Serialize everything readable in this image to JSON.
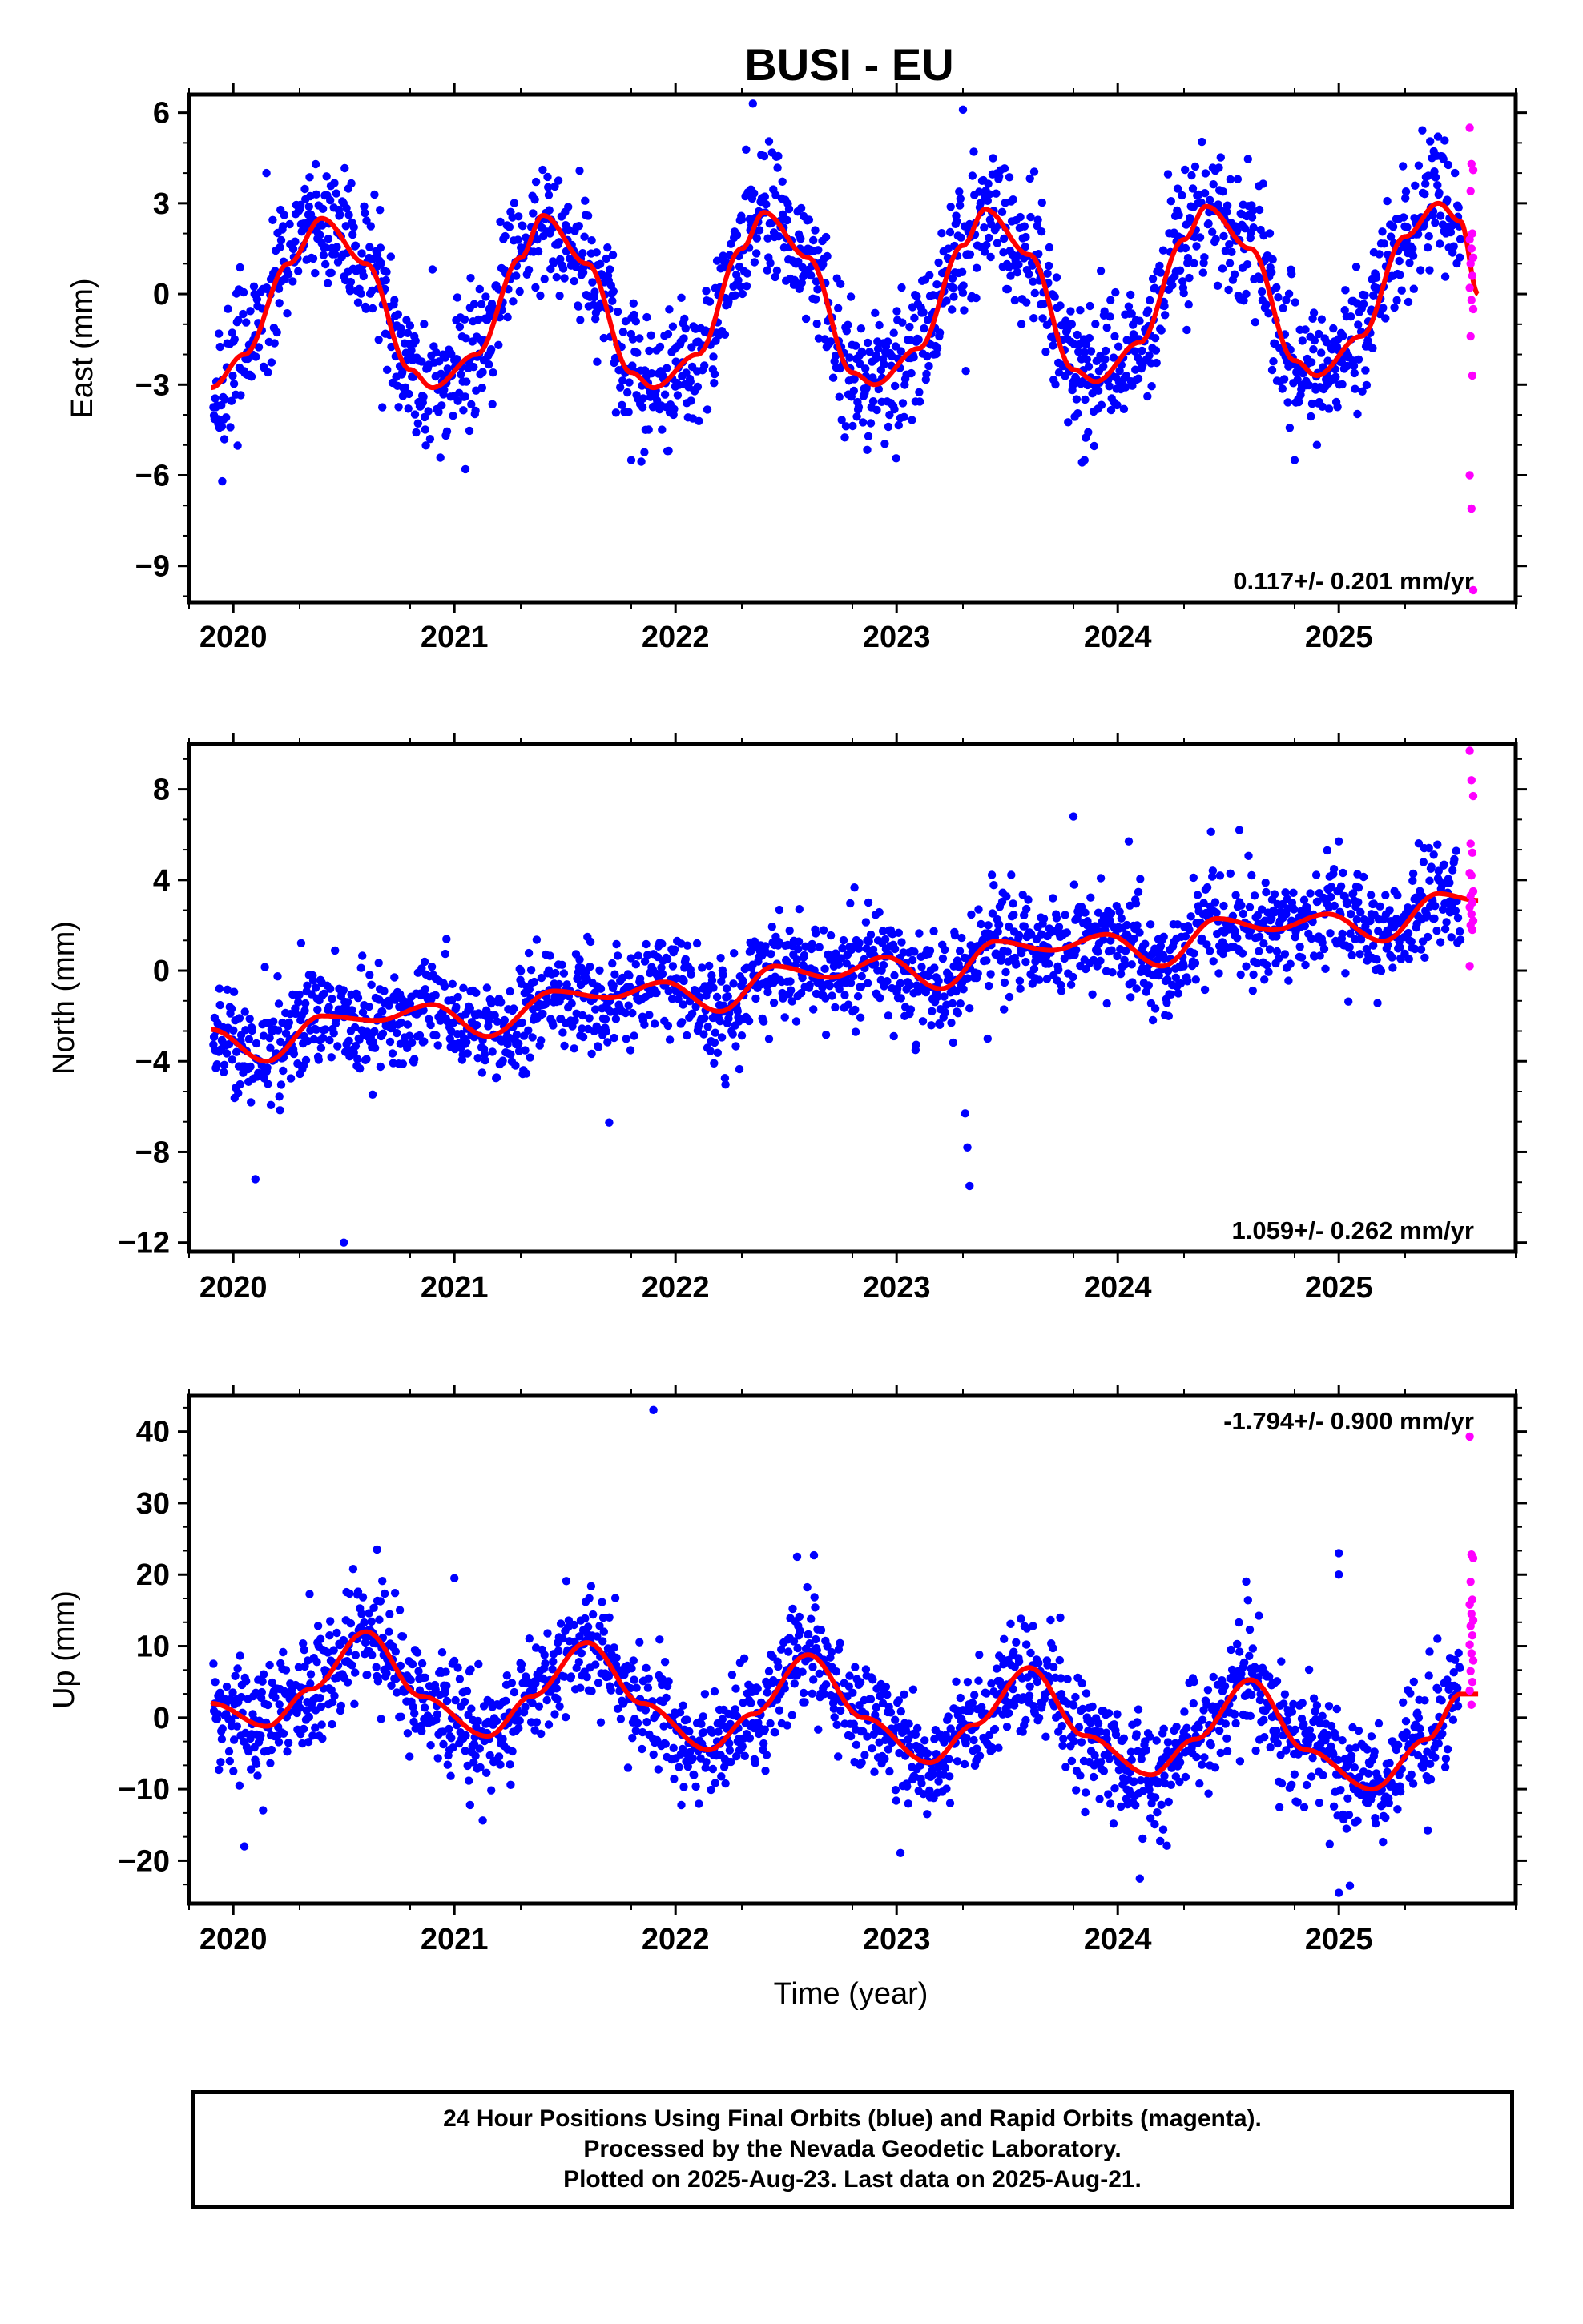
{
  "title": "BUSI - EU",
  "xlabel": "Time (year)",
  "colors": {
    "final_orbits": "#0000ff",
    "rapid_orbits": "#ff00ff",
    "model_fit": "#ff0000",
    "frame": "#000000"
  },
  "caption": {
    "line1": "24 Hour Positions Using Final Orbits (blue) and Rapid Orbits (magenta).",
    "line2": "Processed by the Nevada Geodetic Laboratory.",
    "line3": "Plotted on 2025-Aug-23. Last data on 2025-Aug-21."
  },
  "chart_data": [
    {
      "type": "scatter",
      "component": "east",
      "ylabel": "East (mm)",
      "xlim": [
        2019.8,
        2025.8
      ],
      "ylim": [
        -10.2,
        6.6
      ],
      "xticks": [
        2020,
        2021,
        2022,
        2023,
        2024,
        2025
      ],
      "yticks": [
        6,
        3,
        0,
        -3,
        -6,
        -9
      ],
      "rate_label": "0.117+/- 0.201 mm/yr",
      "rate_label_position": "bottom-right",
      "time_span": [
        2019.91,
        2025.55
      ],
      "final_orbit_scatter_mm": 1.1,
      "series": [
        {
          "name": "Final Orbits",
          "color": "#0000ff",
          "curve_points": [
            [
              2019.9,
              -3.2
            ],
            [
              2020.05,
              -2.0
            ],
            [
              2020.25,
              1.0
            ],
            [
              2020.4,
              2.6
            ],
            [
              2020.6,
              1.0
            ],
            [
              2020.8,
              -2.5
            ],
            [
              2020.9,
              -3.2
            ],
            [
              2021.1,
              -2.0
            ],
            [
              2021.3,
              1.2
            ],
            [
              2021.4,
              2.6
            ],
            [
              2021.6,
              1.0
            ],
            [
              2021.8,
              -2.6
            ],
            [
              2021.9,
              -3.1
            ],
            [
              2022.1,
              -2.0
            ],
            [
              2022.3,
              1.5
            ],
            [
              2022.4,
              2.7
            ],
            [
              2022.6,
              1.2
            ],
            [
              2022.8,
              -2.6
            ],
            [
              2022.9,
              -3.0
            ],
            [
              2023.1,
              -1.8
            ],
            [
              2023.3,
              1.6
            ],
            [
              2023.4,
              2.8
            ],
            [
              2023.6,
              1.3
            ],
            [
              2023.8,
              -2.5
            ],
            [
              2023.9,
              -2.9
            ],
            [
              2024.1,
              -1.6
            ],
            [
              2024.3,
              1.8
            ],
            [
              2024.4,
              2.9
            ],
            [
              2024.6,
              1.5
            ],
            [
              2024.8,
              -2.2
            ],
            [
              2024.9,
              -2.7
            ],
            [
              2025.1,
              -1.4
            ],
            [
              2025.3,
              1.9
            ],
            [
              2025.45,
              3.0
            ],
            [
              2025.55,
              2.4
            ]
          ],
          "outliers": [
            [
              2020.15,
              4.0
            ],
            [
              2021.05,
              -5.8
            ],
            [
              2021.8,
              -5.5
            ],
            [
              2022.35,
              6.3
            ],
            [
              2023.3,
              6.1
            ],
            [
              2023.85,
              -5.5
            ],
            [
              2024.8,
              -5.5
            ],
            [
              2019.95,
              -6.2
            ]
          ]
        },
        {
          "name": "Rapid Orbits",
          "color": "#ff00ff",
          "values_x": 2025.6,
          "values": [
            5.5,
            4.3,
            4.1,
            3.4,
            2.0,
            1.8,
            1.5,
            1.2,
            1.0,
            0.6,
            0.2,
            -0.2,
            -0.5,
            -1.4,
            -2.7,
            -6.0,
            -7.1,
            -9.8
          ]
        }
      ],
      "model_curve": {
        "name": "Model fit",
        "color": "#ff0000",
        "points": [
          [
            2019.9,
            -3.1
          ],
          [
            2020.05,
            -2.0
          ],
          [
            2020.25,
            1.0
          ],
          [
            2020.4,
            2.5
          ],
          [
            2020.6,
            1.0
          ],
          [
            2020.8,
            -2.5
          ],
          [
            2020.9,
            -3.1
          ],
          [
            2021.1,
            -2.0
          ],
          [
            2021.3,
            1.2
          ],
          [
            2021.4,
            2.6
          ],
          [
            2021.6,
            1.0
          ],
          [
            2021.8,
            -2.6
          ],
          [
            2021.9,
            -3.1
          ],
          [
            2022.1,
            -2.0
          ],
          [
            2022.3,
            1.5
          ],
          [
            2022.4,
            2.7
          ],
          [
            2022.6,
            1.2
          ],
          [
            2022.8,
            -2.6
          ],
          [
            2022.9,
            -3.0
          ],
          [
            2023.1,
            -1.8
          ],
          [
            2023.3,
            1.6
          ],
          [
            2023.4,
            2.8
          ],
          [
            2023.6,
            1.3
          ],
          [
            2023.8,
            -2.5
          ],
          [
            2023.9,
            -2.9
          ],
          [
            2024.1,
            -1.6
          ],
          [
            2024.3,
            1.8
          ],
          [
            2024.4,
            2.9
          ],
          [
            2024.6,
            1.5
          ],
          [
            2024.8,
            -2.2
          ],
          [
            2024.9,
            -2.7
          ],
          [
            2025.1,
            -1.4
          ],
          [
            2025.3,
            1.9
          ],
          [
            2025.45,
            3.0
          ],
          [
            2025.55,
            2.4
          ],
          [
            2025.63,
            0.0
          ]
        ]
      }
    },
    {
      "type": "scatter",
      "component": "north",
      "ylabel": "North (mm)",
      "xlim": [
        2019.8,
        2025.8
      ],
      "ylim": [
        -12.4,
        10.0
      ],
      "xticks": [
        2020,
        2021,
        2022,
        2023,
        2024,
        2025
      ],
      "yticks": [
        8,
        4,
        0,
        -4,
        -8,
        -12
      ],
      "rate_label": "1.059+/- 0.262 mm/yr",
      "rate_label_position": "bottom-right",
      "time_span": [
        2019.91,
        2025.55
      ],
      "final_orbit_scatter_mm": 1.1,
      "series": [
        {
          "name": "Final Orbits",
          "color": "#0000ff",
          "curve_points": [
            [
              2019.9,
              -2.6
            ],
            [
              2020.15,
              -4.0
            ],
            [
              2020.4,
              -2.0
            ],
            [
              2020.65,
              -2.2
            ],
            [
              2020.9,
              -1.5
            ],
            [
              2021.15,
              -2.9
            ],
            [
              2021.45,
              -0.9
            ],
            [
              2021.7,
              -1.2
            ],
            [
              2021.95,
              -0.5
            ],
            [
              2022.2,
              -1.8
            ],
            [
              2022.45,
              0.2
            ],
            [
              2022.7,
              -0.3
            ],
            [
              2022.95,
              0.6
            ],
            [
              2023.2,
              -0.8
            ],
            [
              2023.45,
              1.3
            ],
            [
              2023.7,
              0.9
            ],
            [
              2023.95,
              1.6
            ],
            [
              2024.2,
              0.2
            ],
            [
              2024.45,
              2.3
            ],
            [
              2024.7,
              1.8
            ],
            [
              2024.95,
              2.5
            ],
            [
              2025.2,
              1.3
            ],
            [
              2025.45,
              3.4
            ],
            [
              2025.55,
              3.1
            ]
          ],
          "outliers": [
            [
              2020.5,
              -12.0
            ],
            [
              2020.1,
              -9.2
            ],
            [
              2023.33,
              -9.5
            ],
            [
              2023.32,
              -7.8
            ],
            [
              2023.31,
              -6.3
            ],
            [
              2021.7,
              -6.7
            ],
            [
              2023.8,
              6.8
            ],
            [
              2024.55,
              6.2
            ],
            [
              2025.0,
              5.7
            ],
            [
              2024.05,
              5.7
            ]
          ]
        },
        {
          "name": "Rapid Orbits",
          "color": "#ff00ff",
          "values_x": 2025.6,
          "values": [
            9.7,
            8.4,
            7.7,
            5.6,
            5.2,
            4.3,
            4.2,
            3.5,
            3.3,
            3.0,
            2.8,
            2.5,
            2.2,
            2.0,
            1.8,
            0.2
          ]
        }
      ],
      "model_curve": {
        "name": "Model fit",
        "color": "#ff0000",
        "points": [
          [
            2019.9,
            -2.6
          ],
          [
            2020.15,
            -4.0
          ],
          [
            2020.4,
            -2.0
          ],
          [
            2020.65,
            -2.2
          ],
          [
            2020.9,
            -1.5
          ],
          [
            2021.15,
            -2.9
          ],
          [
            2021.45,
            -0.9
          ],
          [
            2021.7,
            -1.2
          ],
          [
            2021.95,
            -0.5
          ],
          [
            2022.2,
            -1.8
          ],
          [
            2022.45,
            0.2
          ],
          [
            2022.7,
            -0.3
          ],
          [
            2022.95,
            0.6
          ],
          [
            2023.2,
            -0.8
          ],
          [
            2023.45,
            1.3
          ],
          [
            2023.7,
            0.9
          ],
          [
            2023.95,
            1.6
          ],
          [
            2024.2,
            0.2
          ],
          [
            2024.45,
            2.3
          ],
          [
            2024.7,
            1.8
          ],
          [
            2024.95,
            2.5
          ],
          [
            2025.2,
            1.3
          ],
          [
            2025.45,
            3.4
          ],
          [
            2025.63,
            3.1
          ]
        ]
      }
    },
    {
      "type": "scatter",
      "component": "up",
      "ylabel": "Up (mm)",
      "xlim": [
        2019.8,
        2025.8
      ],
      "ylim": [
        -26,
        45
      ],
      "xticks": [
        2020,
        2021,
        2022,
        2023,
        2024,
        2025
      ],
      "yticks": [
        40,
        30,
        20,
        10,
        0,
        -10,
        -20
      ],
      "rate_label": "-1.794+/- 0.900 mm/yr",
      "rate_label_position": "top-right",
      "time_span": [
        2019.91,
        2025.55
      ],
      "final_orbit_scatter_mm": 4.0,
      "series": [
        {
          "name": "Final Orbits",
          "color": "#0000ff",
          "curve_points": [
            [
              2019.9,
              2.0
            ],
            [
              2020.15,
              -1.2
            ],
            [
              2020.35,
              4.0
            ],
            [
              2020.6,
              12.0
            ],
            [
              2020.85,
              3.0
            ],
            [
              2021.15,
              -2.6
            ],
            [
              2021.35,
              3.0
            ],
            [
              2021.6,
              10.5
            ],
            [
              2021.85,
              2.0
            ],
            [
              2022.15,
              -4.5
            ],
            [
              2022.35,
              0.5
            ],
            [
              2022.6,
              8.8
            ],
            [
              2022.85,
              0.0
            ],
            [
              2023.15,
              -6.3
            ],
            [
              2023.35,
              -1.0
            ],
            [
              2023.6,
              7.0
            ],
            [
              2023.85,
              -2.5
            ],
            [
              2024.15,
              -8.0
            ],
            [
              2024.35,
              -3.0
            ],
            [
              2024.6,
              5.3
            ],
            [
              2024.85,
              -4.5
            ],
            [
              2025.15,
              -10.0
            ],
            [
              2025.4,
              -3.0
            ],
            [
              2025.55,
              3.3
            ]
          ],
          "outliers": [
            [
              2021.9,
              43.0
            ],
            [
              2025.0,
              23.0
            ],
            [
              2025.0,
              20.0
            ],
            [
              2020.65,
              23.5
            ],
            [
              2022.55,
              22.5
            ],
            [
              2020.05,
              -18.0
            ],
            [
              2024.1,
              -22.5
            ],
            [
              2025.05,
              -23.5
            ],
            [
              2025.0,
              -24.5
            ],
            [
              2021.0,
              19.5
            ]
          ]
        },
        {
          "name": "Rapid Orbits",
          "color": "#ff00ff",
          "values_x": 2025.6,
          "values": [
            39.3,
            22.8,
            22.3,
            19.0,
            16.5,
            15.8,
            14.5,
            13.6,
            12.8,
            11.5,
            10.2,
            9.0,
            8.0,
            6.5,
            5.0,
            3.8,
            1.8
          ]
        }
      ],
      "model_curve": {
        "name": "Model fit",
        "color": "#ff0000",
        "points": [
          [
            2019.9,
            2.0
          ],
          [
            2020.15,
            -1.2
          ],
          [
            2020.35,
            4.0
          ],
          [
            2020.6,
            12.0
          ],
          [
            2020.85,
            3.0
          ],
          [
            2021.15,
            -2.6
          ],
          [
            2021.35,
            3.0
          ],
          [
            2021.6,
            10.5
          ],
          [
            2021.85,
            2.0
          ],
          [
            2022.15,
            -4.5
          ],
          [
            2022.35,
            0.5
          ],
          [
            2022.6,
            8.8
          ],
          [
            2022.85,
            0.0
          ],
          [
            2023.15,
            -6.3
          ],
          [
            2023.35,
            -1.0
          ],
          [
            2023.6,
            7.0
          ],
          [
            2023.85,
            -2.5
          ],
          [
            2024.15,
            -8.0
          ],
          [
            2024.35,
            -3.0
          ],
          [
            2024.6,
            5.3
          ],
          [
            2024.85,
            -4.5
          ],
          [
            2025.15,
            -10.0
          ],
          [
            2025.4,
            -3.0
          ],
          [
            2025.55,
            3.3
          ],
          [
            2025.63,
            3.3
          ]
        ]
      }
    }
  ]
}
